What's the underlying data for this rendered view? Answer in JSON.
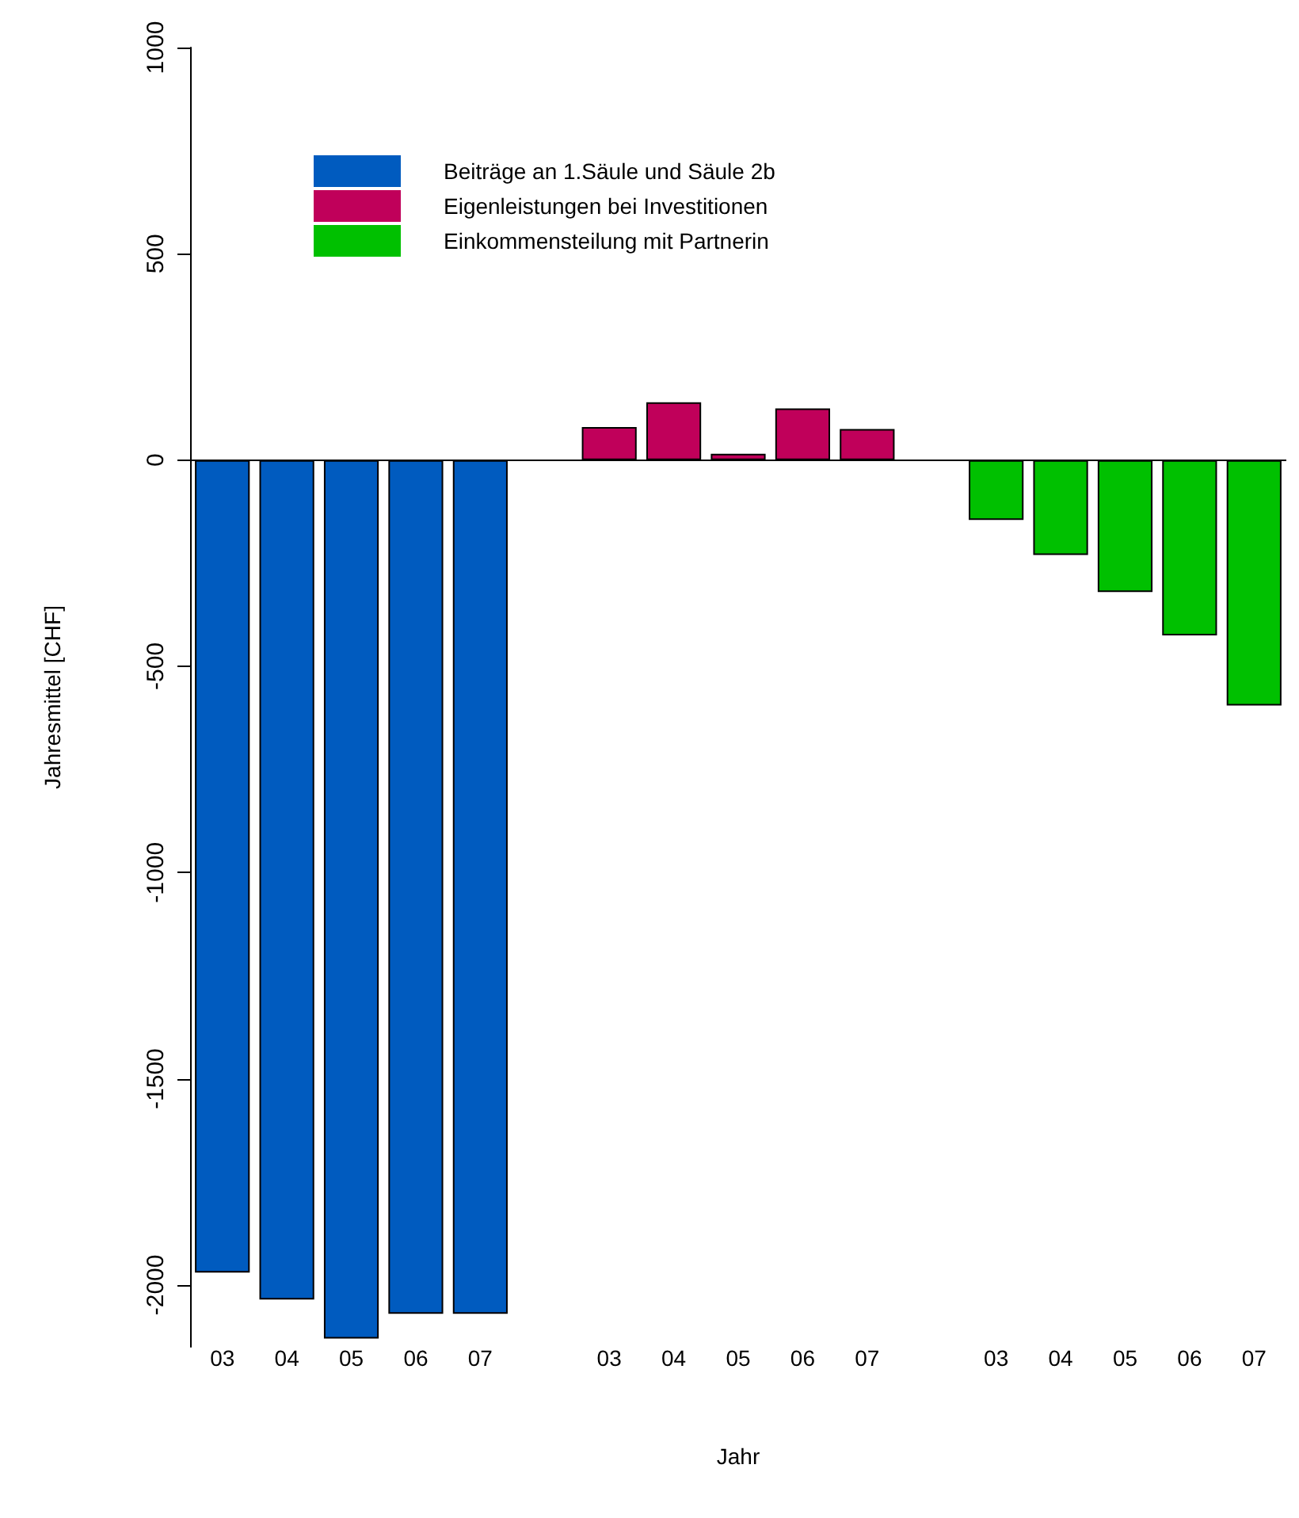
{
  "chart_data": {
    "type": "bar",
    "xlabel": "Jahr",
    "ylabel": "Jahresmittel [CHF]",
    "categories": [
      "03",
      "04",
      "05",
      "06",
      "07",
      null,
      "03",
      "04",
      "05",
      "06",
      "07",
      null,
      "03",
      "04",
      "05",
      "06",
      "07"
    ],
    "series": [
      {
        "name": "Beiträge an 1.Säule und Säule 2b",
        "color": "#005bbf",
        "values": [
          -1970,
          -2035,
          -2130,
          -2070,
          -2070,
          null,
          null,
          null,
          null,
          null,
          null,
          null,
          null,
          null,
          null,
          null,
          null
        ]
      },
      {
        "name": "Eigenleistungen bei Investitionen",
        "color": "#c0005a",
        "values": [
          null,
          null,
          null,
          null,
          null,
          null,
          80,
          140,
          15,
          125,
          75,
          null,
          null,
          null,
          null,
          null,
          null
        ]
      },
      {
        "name": "Einkommensteilung mit Partnerin",
        "color": "#00c000",
        "values": [
          null,
          null,
          null,
          null,
          null,
          null,
          null,
          null,
          null,
          null,
          null,
          null,
          -145,
          -230,
          -320,
          -425,
          -595
        ]
      }
    ],
    "ylim": [
      -2150,
      1000
    ],
    "yticks": [
      -2000,
      -1500,
      -1000,
      -500,
      0,
      500,
      1000
    ],
    "legend": "top left"
  }
}
